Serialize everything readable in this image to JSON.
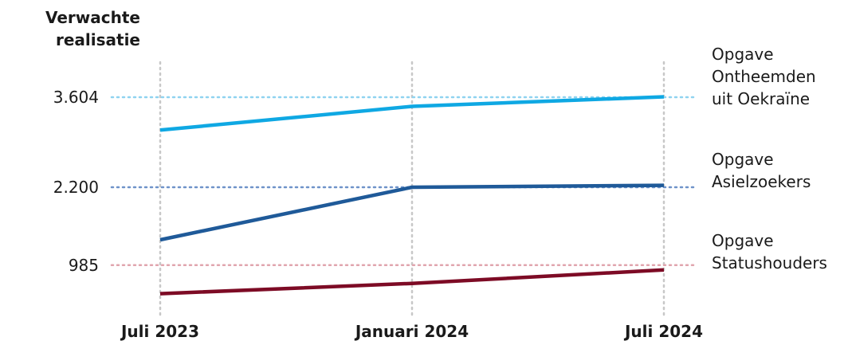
{
  "chart_data": {
    "type": "line",
    "ylabel_lines": [
      "Verwachte",
      "realisatie"
    ],
    "categories": [
      "Juli 2023",
      "Januari 2024",
      "Juli 2024"
    ],
    "reference_lines": [
      {
        "value": 3604,
        "label": "3.604",
        "color": "#8fd3f0",
        "annotation": [
          "Opgave",
          "Ontheemden",
          "uit Oekraïne"
        ]
      },
      {
        "value": 2200,
        "label": "2.200",
        "color": "#6f93c9",
        "annotation": [
          "Opgave",
          "Asielzoekers"
        ]
      },
      {
        "value": 985,
        "label": "985",
        "color": "#e0a5ae",
        "annotation": [
          "Opgave",
          "Statushouders"
        ]
      }
    ],
    "series": [
      {
        "values": [
          3090,
          3460,
          3610
        ],
        "color": "#0fa8e3"
      },
      {
        "values": [
          1380,
          2200,
          2230
        ],
        "color": "#1f5a99"
      },
      {
        "values": [
          540,
          700,
          910
        ],
        "color": "#7d0b25"
      }
    ],
    "ylim": [
      200,
      4150
    ],
    "grid": "vertical-dotted"
  }
}
